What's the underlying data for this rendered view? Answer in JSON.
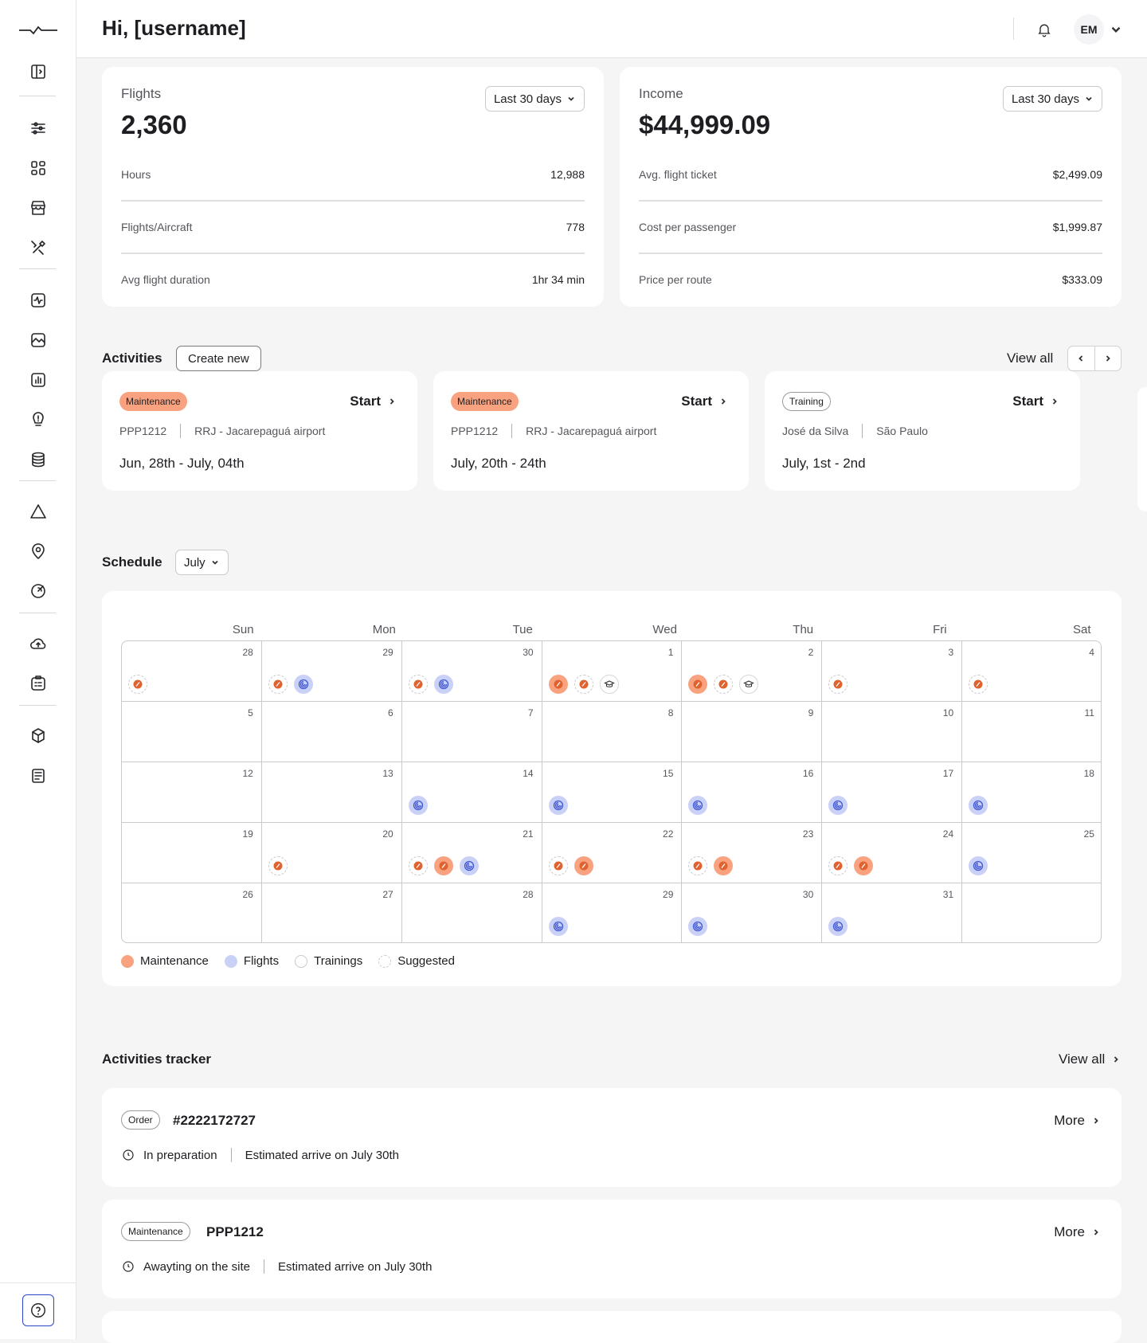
{
  "header": {
    "greeting": "Hi, [username]",
    "avatar_initials": "EM"
  },
  "sidebar": {
    "icons": [
      "panel-toggle-icon",
      "sliders-icon",
      "grid-icon",
      "store-icon",
      "tools-icon",
      "activity-icon",
      "image-icon",
      "bar-chart-icon",
      "alert-pin-icon",
      "database-icon",
      "warning-triangle-icon",
      "location-pin-icon",
      "radar-icon",
      "cloud-upload-icon",
      "clipboard-list-icon",
      "box-icon",
      "document-list-icon"
    ],
    "help_icon": "help-icon"
  },
  "flights": {
    "title": "Flights",
    "value": "2,360",
    "range": "Last 30 days",
    "rows": [
      {
        "label": "Hours",
        "value": "12,988"
      },
      {
        "label": "Flights/Aircraft",
        "value": "778"
      },
      {
        "label": "Avg flight duration",
        "value": "1hr 34 min"
      }
    ]
  },
  "income": {
    "title": "Income",
    "value": "$44,999.09",
    "range": "Last 30 days",
    "rows": [
      {
        "label": "Avg. flight ticket",
        "value": "$2,499.09"
      },
      {
        "label": "Cost per passenger",
        "value": "$1,999.87"
      },
      {
        "label": "Price per route",
        "value": "$333.09"
      }
    ]
  },
  "activities": {
    "title": "Activities",
    "create_label": "Create new",
    "view_all": "View all",
    "cards": [
      {
        "type": "Maintenance",
        "style": "orange",
        "start": "Start",
        "meta1": "PPP1212",
        "meta2": "RRJ - Jacarepaguá airport",
        "date": "Jun, 28th - July, 04th"
      },
      {
        "type": "Maintenance",
        "style": "orange",
        "start": "Start",
        "meta1": "PPP1212",
        "meta2": "RRJ - Jacarepaguá airport",
        "date": "July, 20th - 24th"
      },
      {
        "type": "Training",
        "style": "outline",
        "start": "Start",
        "meta1": "José da Silva",
        "meta2": "São Paulo",
        "date": "July, 1st - 2nd"
      }
    ]
  },
  "schedule": {
    "title": "Schedule",
    "month": "July",
    "weekdays": [
      "Sun",
      "Mon",
      "Tue",
      "Wed",
      "Thu",
      "Fri",
      "Sat"
    ],
    "weeks": [
      [
        {
          "d": "28",
          "e": [
            "s"
          ]
        },
        {
          "d": "29",
          "e": [
            "s",
            "f"
          ]
        },
        {
          "d": "30",
          "e": [
            "s",
            "f"
          ]
        },
        {
          "d": "1",
          "e": [
            "m",
            "s",
            "t"
          ]
        },
        {
          "d": "2",
          "e": [
            "m",
            "s",
            "t"
          ]
        },
        {
          "d": "3",
          "e": [
            "s"
          ]
        },
        {
          "d": "4",
          "e": [
            "s"
          ]
        }
      ],
      [
        {
          "d": "5",
          "e": []
        },
        {
          "d": "6",
          "e": []
        },
        {
          "d": "7",
          "e": []
        },
        {
          "d": "8",
          "e": []
        },
        {
          "d": "9",
          "e": []
        },
        {
          "d": "10",
          "e": []
        },
        {
          "d": "11",
          "e": []
        }
      ],
      [
        {
          "d": "12",
          "e": []
        },
        {
          "d": "13",
          "e": []
        },
        {
          "d": "14",
          "e": [
            "f"
          ]
        },
        {
          "d": "15",
          "e": [
            "f"
          ]
        },
        {
          "d": "16",
          "e": [
            "f"
          ]
        },
        {
          "d": "17",
          "e": [
            "f"
          ]
        },
        {
          "d": "18",
          "e": [
            "f"
          ]
        }
      ],
      [
        {
          "d": "19",
          "e": []
        },
        {
          "d": "20",
          "e": [
            "s"
          ]
        },
        {
          "d": "21",
          "e": [
            "s",
            "m",
            "f"
          ]
        },
        {
          "d": "22",
          "e": [
            "s",
            "m"
          ]
        },
        {
          "d": "23",
          "e": [
            "s",
            "m"
          ]
        },
        {
          "d": "24",
          "e": [
            "s",
            "m"
          ]
        },
        {
          "d": "25",
          "e": [
            "f"
          ]
        }
      ],
      [
        {
          "d": "26",
          "e": []
        },
        {
          "d": "27",
          "e": []
        },
        {
          "d": "28",
          "e": []
        },
        {
          "d": "29",
          "e": [
            "f"
          ]
        },
        {
          "d": "30",
          "e": [
            "f"
          ]
        },
        {
          "d": "31",
          "e": [
            "f"
          ]
        },
        {
          "d": "",
          "e": []
        }
      ]
    ],
    "legend": [
      {
        "label": "Maintenance",
        "color": "#f8a27f"
      },
      {
        "label": "Flights",
        "color": "#c9d1f6"
      },
      {
        "label": "Trainings",
        "color": "#ffffff"
      },
      {
        "label": "Suggested",
        "color": "dashed"
      }
    ],
    "colors": {
      "maintenance_dark": "#e0622f",
      "flight_dark": "#3f56d6"
    }
  },
  "tracker": {
    "title": "Activities tracker",
    "view_all": "View all",
    "items": [
      {
        "badge": "Order",
        "id": "#2222172727",
        "more": "More",
        "status": "In preparation",
        "eta": "Estimated arrive on July 30th"
      },
      {
        "badge": "Maintenance",
        "id": "PPP1212",
        "more": "More",
        "status": "Awayting on the site",
        "eta": "Estimated arrive on July 30th"
      }
    ]
  }
}
